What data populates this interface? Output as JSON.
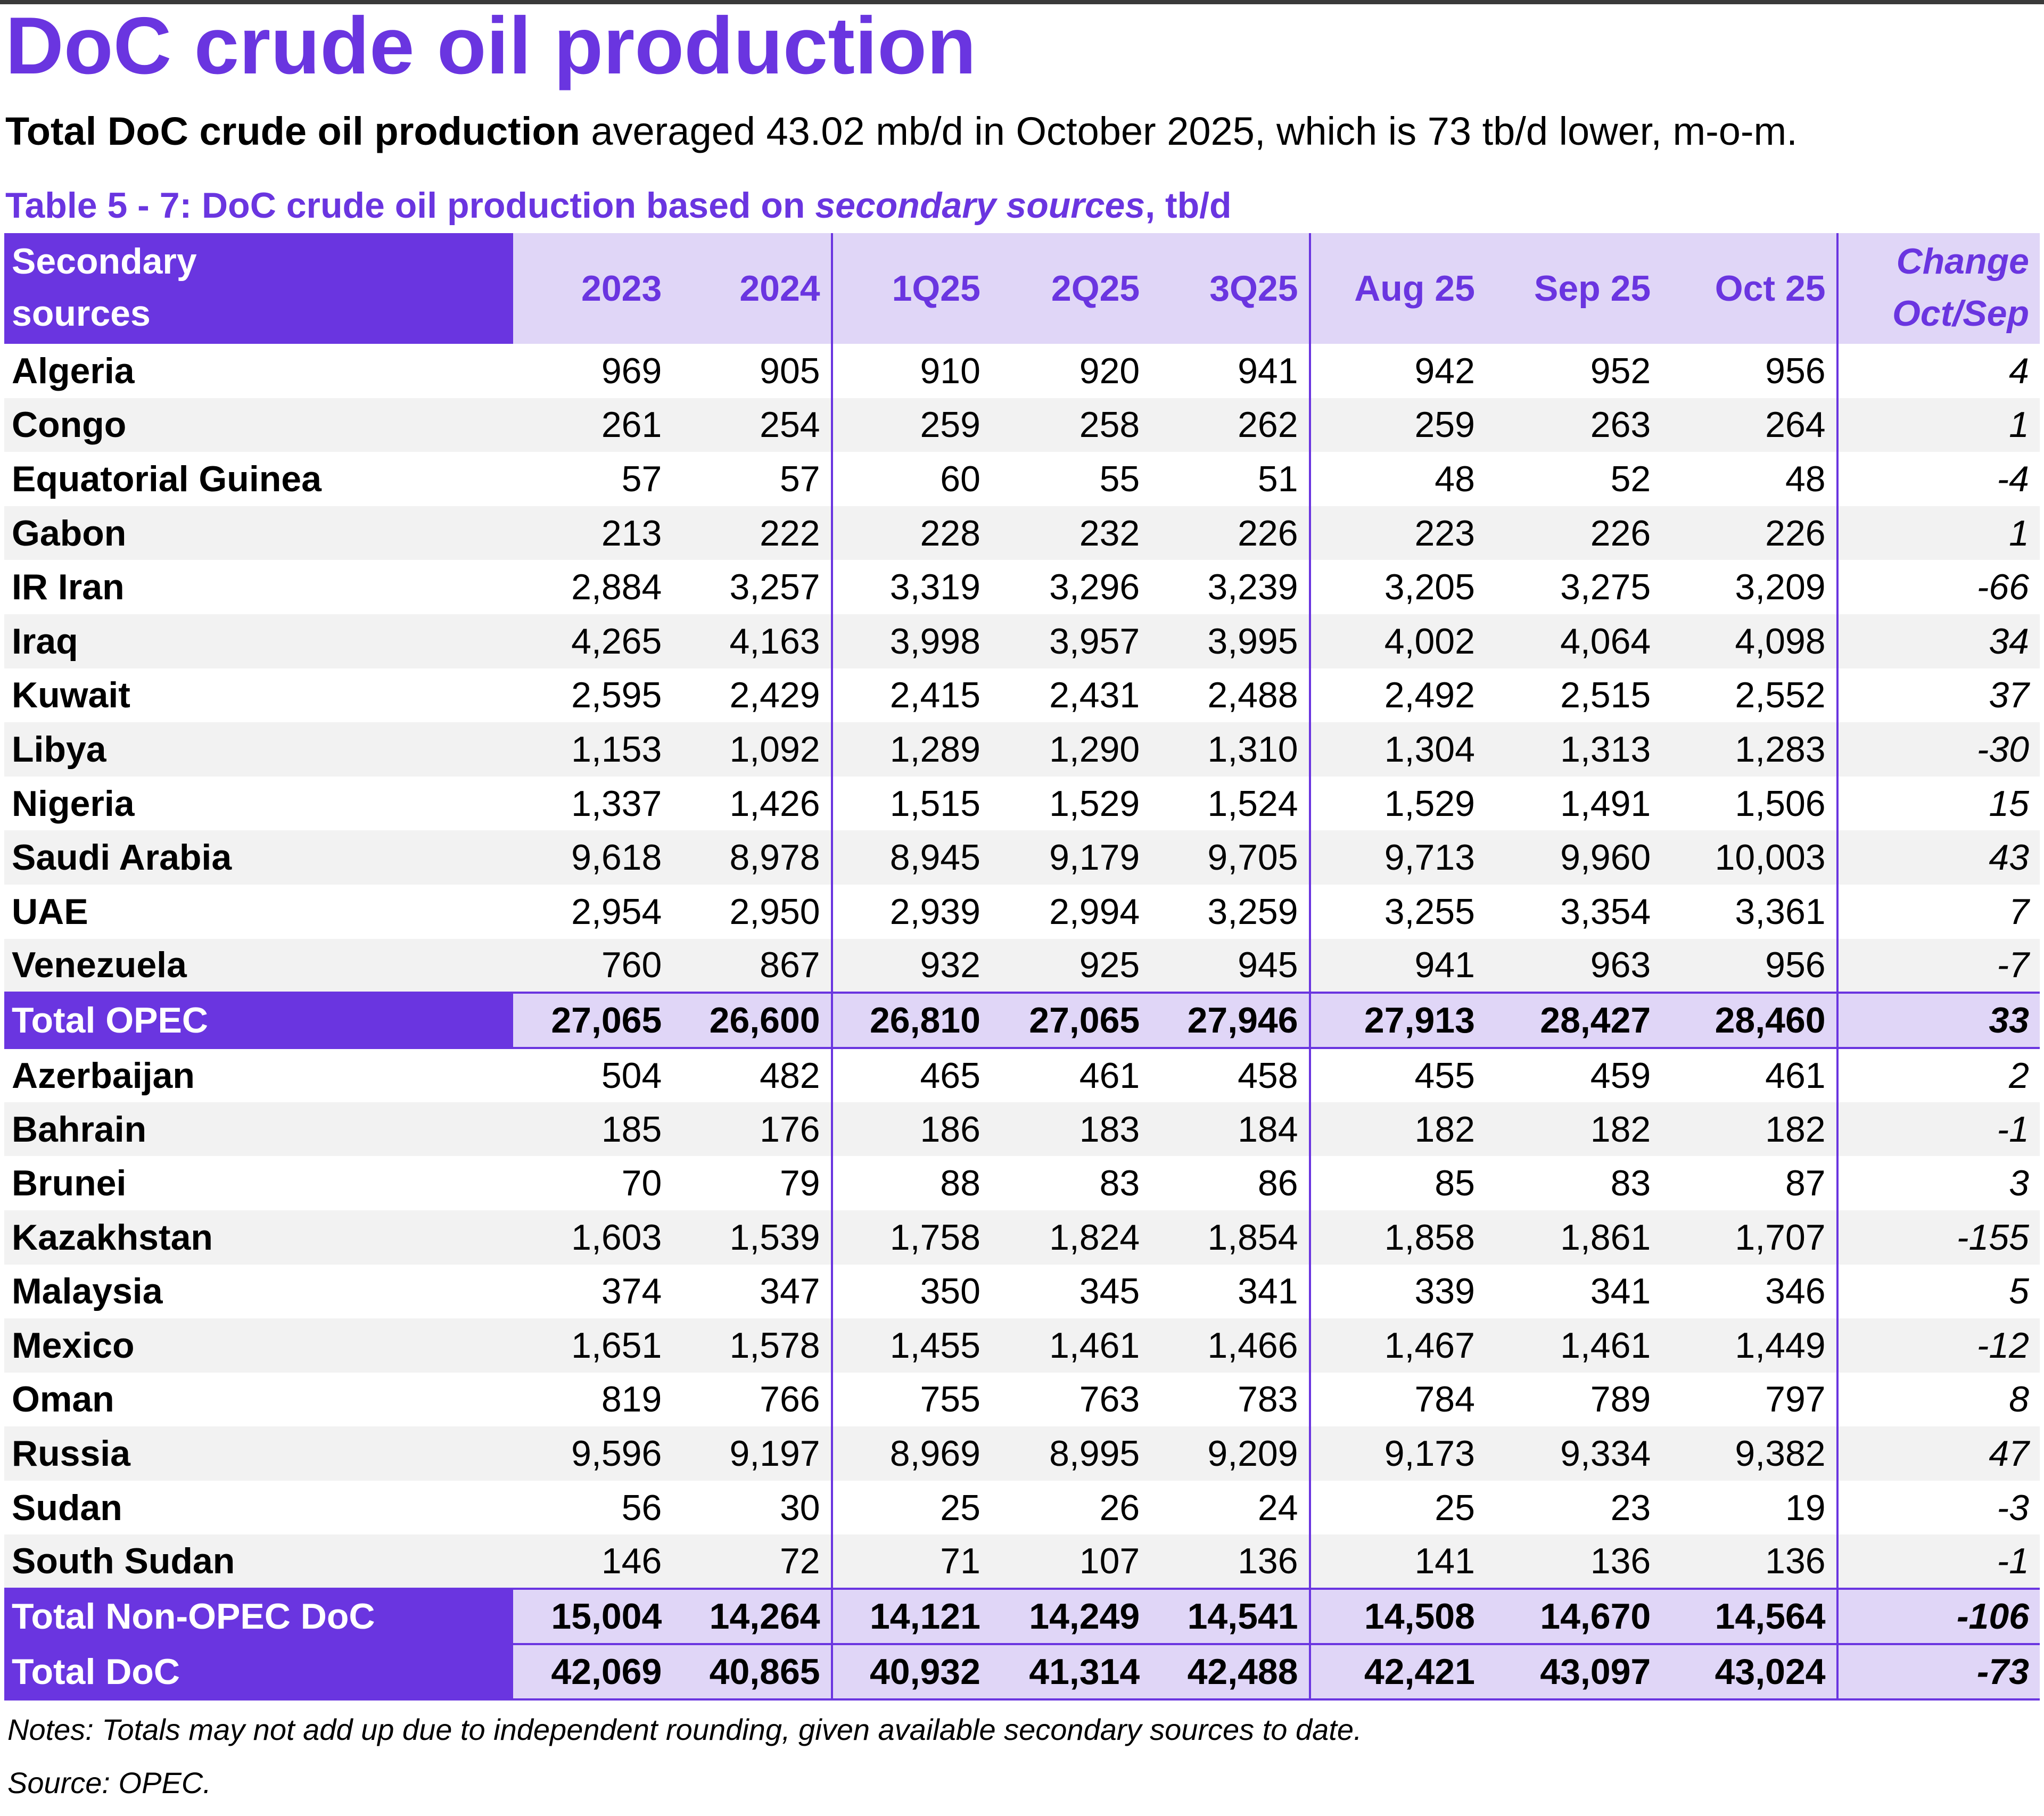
{
  "title": "DoC crude oil production",
  "summary": {
    "bold": "Total DoC crude oil production",
    "rest": " averaged 43.02 mb/d in October 2025, which is 73 tb/d lower, m-o-m."
  },
  "caption": {
    "prefix": "Table 5 - 7: DoC crude oil production based on ",
    "italic": "secondary sources",
    "suffix": ", tb/d"
  },
  "header": {
    "stub_line1": "Secondary",
    "stub_line2": "sources",
    "columns": [
      "2023",
      "2024",
      "1Q25",
      "2Q25",
      "3Q25",
      "Aug 25",
      "Sep 25",
      "Oct 25"
    ],
    "change_line1": "Change",
    "change_line2": "Oct/Sep"
  },
  "opec_rows": [
    {
      "name": "Algeria",
      "values": [
        "969",
        "905",
        "910",
        "920",
        "941",
        "942",
        "952",
        "956"
      ],
      "change": "4"
    },
    {
      "name": "Congo",
      "values": [
        "261",
        "254",
        "259",
        "258",
        "262",
        "259",
        "263",
        "264"
      ],
      "change": "1"
    },
    {
      "name": "Equatorial Guinea",
      "values": [
        "57",
        "57",
        "60",
        "55",
        "51",
        "48",
        "52",
        "48"
      ],
      "change": "-4"
    },
    {
      "name": "Gabon",
      "values": [
        "213",
        "222",
        "228",
        "232",
        "226",
        "223",
        "226",
        "226"
      ],
      "change": "1"
    },
    {
      "name": "IR Iran",
      "values": [
        "2,884",
        "3,257",
        "3,319",
        "3,296",
        "3,239",
        "3,205",
        "3,275",
        "3,209"
      ],
      "change": "-66"
    },
    {
      "name": "Iraq",
      "values": [
        "4,265",
        "4,163",
        "3,998",
        "3,957",
        "3,995",
        "4,002",
        "4,064",
        "4,098"
      ],
      "change": "34"
    },
    {
      "name": "Kuwait",
      "values": [
        "2,595",
        "2,429",
        "2,415",
        "2,431",
        "2,488",
        "2,492",
        "2,515",
        "2,552"
      ],
      "change": "37"
    },
    {
      "name": "Libya",
      "values": [
        "1,153",
        "1,092",
        "1,289",
        "1,290",
        "1,310",
        "1,304",
        "1,313",
        "1,283"
      ],
      "change": "-30"
    },
    {
      "name": "Nigeria",
      "values": [
        "1,337",
        "1,426",
        "1,515",
        "1,529",
        "1,524",
        "1,529",
        "1,491",
        "1,506"
      ],
      "change": "15"
    },
    {
      "name": "Saudi Arabia",
      "values": [
        "9,618",
        "8,978",
        "8,945",
        "9,179",
        "9,705",
        "9,713",
        "9,960",
        "10,003"
      ],
      "change": "43"
    },
    {
      "name": "UAE",
      "values": [
        "2,954",
        "2,950",
        "2,939",
        "2,994",
        "3,259",
        "3,255",
        "3,354",
        "3,361"
      ],
      "change": "7"
    },
    {
      "name": "Venezuela",
      "values": [
        "760",
        "867",
        "932",
        "925",
        "945",
        "941",
        "963",
        "956"
      ],
      "change": "-7"
    }
  ],
  "total_opec": {
    "name": "Total  OPEC",
    "values": [
      "27,065",
      "26,600",
      "26,810",
      "27,065",
      "27,946",
      "27,913",
      "28,427",
      "28,460"
    ],
    "change": "33"
  },
  "nonopec_rows": [
    {
      "name": "Azerbaijan",
      "values": [
        "504",
        "482",
        "465",
        "461",
        "458",
        "455",
        "459",
        "461"
      ],
      "change": "2"
    },
    {
      "name": "Bahrain",
      "values": [
        "185",
        "176",
        "186",
        "183",
        "184",
        "182",
        "182",
        "182"
      ],
      "change": "-1"
    },
    {
      "name": "Brunei",
      "values": [
        "70",
        "79",
        "88",
        "83",
        "86",
        "85",
        "83",
        "87"
      ],
      "change": "3"
    },
    {
      "name": "Kazakhstan",
      "values": [
        "1,603",
        "1,539",
        "1,758",
        "1,824",
        "1,854",
        "1,858",
        "1,861",
        "1,707"
      ],
      "change": "-155"
    },
    {
      "name": "Malaysia",
      "values": [
        "374",
        "347",
        "350",
        "345",
        "341",
        "339",
        "341",
        "346"
      ],
      "change": "5"
    },
    {
      "name": "Mexico",
      "values": [
        "1,651",
        "1,578",
        "1,455",
        "1,461",
        "1,466",
        "1,467",
        "1,461",
        "1,449"
      ],
      "change": "-12"
    },
    {
      "name": "Oman",
      "values": [
        "819",
        "766",
        "755",
        "763",
        "783",
        "784",
        "789",
        "797"
      ],
      "change": "8"
    },
    {
      "name": "Russia",
      "values": [
        "9,596",
        "9,197",
        "8,969",
        "8,995",
        "9,209",
        "9,173",
        "9,334",
        "9,382"
      ],
      "change": "47"
    },
    {
      "name": "Sudan",
      "values": [
        "56",
        "30",
        "25",
        "26",
        "24",
        "25",
        "23",
        "19"
      ],
      "change": "-3"
    },
    {
      "name": "South Sudan",
      "values": [
        "146",
        "72",
        "71",
        "107",
        "136",
        "141",
        "136",
        "136"
      ],
      "change": "-1"
    }
  ],
  "total_nonopec": {
    "name": "Total Non-OPEC DoC",
    "values": [
      "15,004",
      "14,264",
      "14,121",
      "14,249",
      "14,541",
      "14,508",
      "14,670",
      "14,564"
    ],
    "change": "-106"
  },
  "total_doc": {
    "name": "Total DoC",
    "values": [
      "42,069",
      "40,865",
      "40,932",
      "41,314",
      "42,488",
      "42,421",
      "43,097",
      "43,024"
    ],
    "change": "-73"
  },
  "notes": "Notes: Totals may not add up due to independent rounding, given available secondary sources to date.",
  "source": "Source: OPEC.",
  "colors": {
    "accent": "#6a35e0",
    "header_bg": "#e0d6f7",
    "stripe": "#f2f2f2"
  }
}
